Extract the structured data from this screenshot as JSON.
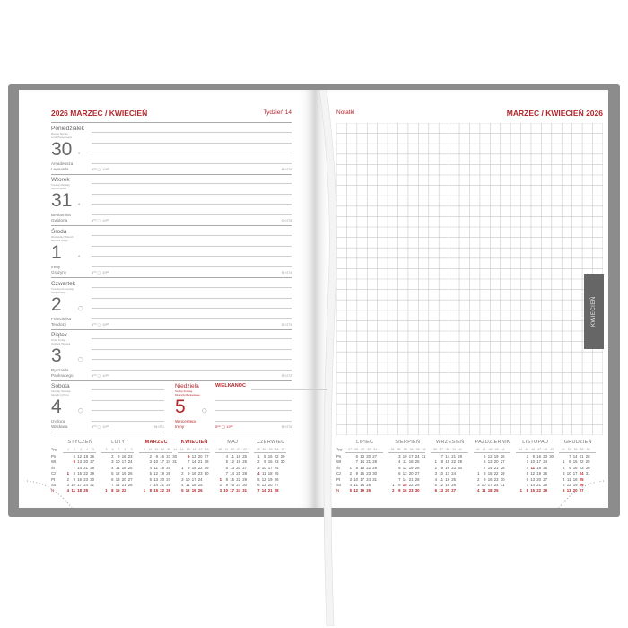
{
  "left_page": {
    "title": "2026 MARZEC / KWIECIEŃ",
    "week": "Tydzień 14",
    "days": [
      {
        "name": "Poniedziałek",
        "tr1": "Monday Montag",
        "tr2": "Lundi Понедельник",
        "num": "30",
        "moon": "◐",
        "names": [
          "Amadeusza",
          "Leonarda"
        ],
        "sun": "6⁰⁰ ◯ 19¹⁸",
        "count": "89+276"
      },
      {
        "name": "Wtorek",
        "tr1": "Tuesday Dienstag",
        "tr2": "Mardi Вторник",
        "num": "31",
        "moon": "◐",
        "names": [
          "Beniamina",
          "Gwidona"
        ],
        "sun": "6⁰⁰ ◯ 19²⁰",
        "count": "90+275"
      },
      {
        "name": "Środa",
        "tr1": "Wednesday Mittwoch",
        "tr2": "Mercredi Среда",
        "num": "1",
        "moon": "◐",
        "names": [
          "Ireny",
          "Grażyny"
        ],
        "sun": "6⁰⁰ ◯ 19²²",
        "count": "91+274"
      },
      {
        "name": "Czwartek",
        "tr1": "Thursday Donnerstag",
        "tr2": "Jeudi Четверг",
        "num": "2",
        "moon": "◯",
        "names": [
          "Franciszka",
          "Teodozji"
        ],
        "sun": "6⁰⁰ ◯ 19²³",
        "count": "92+273"
      },
      {
        "name": "Piątek",
        "tr1": "Friday Freitag",
        "tr2": "Vendredi Пятница",
        "num": "3",
        "moon": "◯",
        "names": [
          "Ryszarda",
          "Pankracego"
        ],
        "sun": "6⁰⁰ ◯ 19²⁴",
        "count": "93+272"
      },
      {
        "name": "Sobota",
        "tr1": "Saturday Samstag",
        "tr2": "Samedi Суббота",
        "num": "4",
        "moon": "◯",
        "names": [
          "Izydora",
          "Wacława"
        ],
        "sun": "6⁰⁰ ◯ 19²⁶",
        "count": "94+271"
      },
      {
        "name": "Niedziela",
        "tr1": "Sunday Sonntag",
        "tr2": "Dimanche Воскресенье",
        "num": "5",
        "moon": "◯",
        "names": [
          "Wincentego",
          "Ireny"
        ],
        "sun": "5⁵⁸ ◯ 19²⁸",
        "count": "95+270",
        "holiday": "WIELKANOC"
      }
    ]
  },
  "right_page": {
    "notes_label": "Notatki",
    "title": "MARZEC / KWIECIEŃ 2026",
    "tab": "KWIECIEŃ"
  },
  "weekday_labels": [
    "Pn",
    "Wt",
    "Śr",
    "Cz",
    "Pt",
    "So",
    "N"
  ],
  "week_label": "Tyg.",
  "week_label_right": "Tyg.",
  "months_left": [
    {
      "name": "STYCZEŃ",
      "days": 31,
      "start": 3,
      "weeks": [
        "1",
        "2",
        "3",
        "4",
        "5"
      ],
      "holidays": [
        1,
        6
      ]
    },
    {
      "name": "LUTY",
      "days": 28,
      "start": 6,
      "weeks": [
        "5",
        "6",
        "7",
        "8",
        "9"
      ],
      "holidays": []
    },
    {
      "name": "MARZEC",
      "days": 31,
      "start": 6,
      "weeks": [
        "9",
        "10",
        "11",
        "12",
        "13",
        "14"
      ],
      "holidays": [],
      "highlight": true
    },
    {
      "name": "KWIECIEŃ",
      "days": 30,
      "start": 2,
      "weeks": [
        "14",
        "15",
        "16",
        "17",
        "18"
      ],
      "holidays": [
        6
      ],
      "highlight": true
    },
    {
      "name": "MAJ",
      "days": 31,
      "start": 4,
      "weeks": [
        "18",
        "19",
        "20",
        "21",
        "22"
      ],
      "holidays": [
        1,
        3
      ]
    },
    {
      "name": "CZERWIEC",
      "days": 30,
      "start": 0,
      "weeks": [
        "23",
        "24",
        "25",
        "26",
        "27"
      ],
      "holidays": [
        4
      ]
    }
  ],
  "months_right": [
    {
      "name": "LIPIEC",
      "days": 31,
      "start": 2,
      "weeks": [
        "27",
        "28",
        "29",
        "30",
        "31"
      ],
      "holidays": []
    },
    {
      "name": "SIERPIEŃ",
      "days": 31,
      "start": 5,
      "weeks": [
        "31",
        "32",
        "33",
        "34",
        "35",
        "36"
      ],
      "holidays": [
        15
      ]
    },
    {
      "name": "WRZESIEŃ",
      "days": 30,
      "start": 1,
      "weeks": [
        "36",
        "37",
        "38",
        "39",
        "40"
      ],
      "holidays": []
    },
    {
      "name": "PAŹDZIERNIK",
      "days": 31,
      "start": 3,
      "weeks": [
        "40",
        "41",
        "42",
        "43",
        "44"
      ],
      "holidays": []
    },
    {
      "name": "LISTOPAD",
      "days": 30,
      "start": 6,
      "weeks": [
        "44",
        "45",
        "46",
        "47",
        "48",
        "49"
      ],
      "holidays": [
        1,
        11
      ]
    },
    {
      "name": "GRUDZIEŃ",
      "days": 31,
      "start": 1,
      "weeks": [
        "49",
        "50",
        "51",
        "52",
        "53"
      ],
      "holidays": [
        24,
        25,
        26
      ]
    }
  ],
  "colors": {
    "accent": "#b3262b",
    "cover": "#8c8c8c",
    "tab": "#666666"
  }
}
